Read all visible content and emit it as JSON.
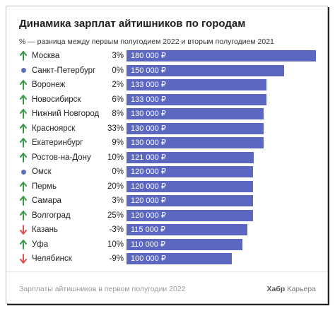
{
  "chart_data": {
    "type": "bar",
    "orientation": "horizontal",
    "title": "Динамика зарплат айтишников по городам",
    "subtitle": "% — разница между первым полугодием 2022 и вторым полугодием 2021",
    "categories": [
      "Москва",
      "Санкт-Петербург",
      "Воронеж",
      "Новосибирск",
      "Нижний Новгород",
      "Красноярск",
      "Екатеринбург",
      "Ростов-на-Дону",
      "Омск",
      "Пермь",
      "Самара",
      "Волгоград",
      "Казань",
      "Уфа",
      "Челябинск"
    ],
    "values": [
      180000,
      150000,
      133000,
      133000,
      130000,
      130000,
      130000,
      121000,
      120000,
      120000,
      120000,
      120000,
      115000,
      110000,
      100000
    ],
    "value_labels": [
      "180 000 ₽",
      "150 000 ₽",
      "133 000 ₽",
      "133 000 ₽",
      "130 000 ₽",
      "130 000 ₽",
      "130 000 ₽",
      "121 000 ₽",
      "120 000 ₽",
      "120 000 ₽",
      "120 000 ₽",
      "120 000 ₽",
      "115 000 ₽",
      "110 000 ₽",
      "100 000 ₽"
    ],
    "changes": [
      "3%",
      "0%",
      "2%",
      "6%",
      "8%",
      "33%",
      "9%",
      "10%",
      "0%",
      "20%",
      "3%",
      "25%",
      "-3%",
      "10%",
      "-9%"
    ],
    "trend": [
      "up",
      "same",
      "up",
      "up",
      "up",
      "up",
      "up",
      "up",
      "same",
      "up",
      "up",
      "up",
      "down",
      "up",
      "down"
    ],
    "xlim": [
      0,
      180000
    ],
    "grid": false,
    "legend": "none"
  },
  "colors": {
    "bar": "#5c68c0",
    "up": "#3a9a4a",
    "down": "#d9534f",
    "same": "#5b6ec0"
  },
  "icons": {
    "up": "arrow-up-icon",
    "down": "arrow-down-icon",
    "same": "dot-icon"
  },
  "footer": {
    "caption": "Зарплаты айтишников в первом полугодии 2022",
    "brand": "Хабр",
    "brand_suffix": "Карьера"
  }
}
